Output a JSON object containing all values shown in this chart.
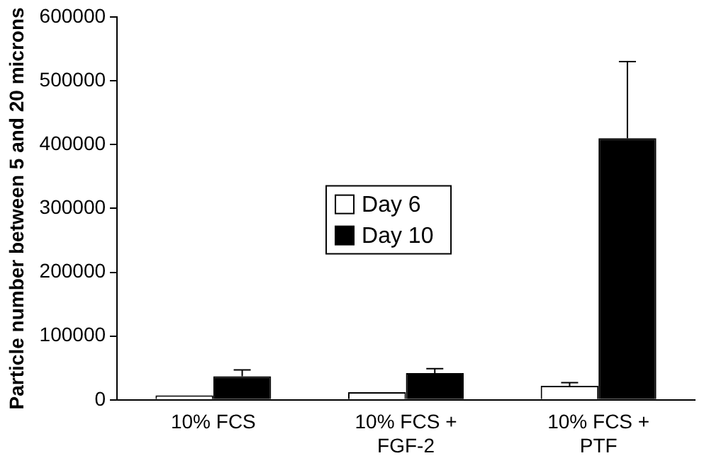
{
  "chart_data": {
    "type": "bar",
    "ylabel": "Particle number between 5 and 20 microns",
    "categories": [
      "10% FCS",
      "10% FCS +\nFGF-2",
      "10% FCS +\nPTF"
    ],
    "series": [
      {
        "name": "Day 6",
        "color": "#ffffff",
        "values": [
          7000,
          12000,
          22000
        ],
        "errors": [
          null,
          null,
          5000
        ]
      },
      {
        "name": "Day 10",
        "color": "#000000",
        "values": [
          37000,
          42000,
          410000
        ],
        "errors": [
          10000,
          7000,
          120000
        ]
      }
    ],
    "ylim": [
      0,
      600000
    ],
    "yticks": [
      0,
      100000,
      200000,
      300000,
      400000,
      500000,
      600000
    ],
    "grid": false,
    "legend": "center"
  }
}
